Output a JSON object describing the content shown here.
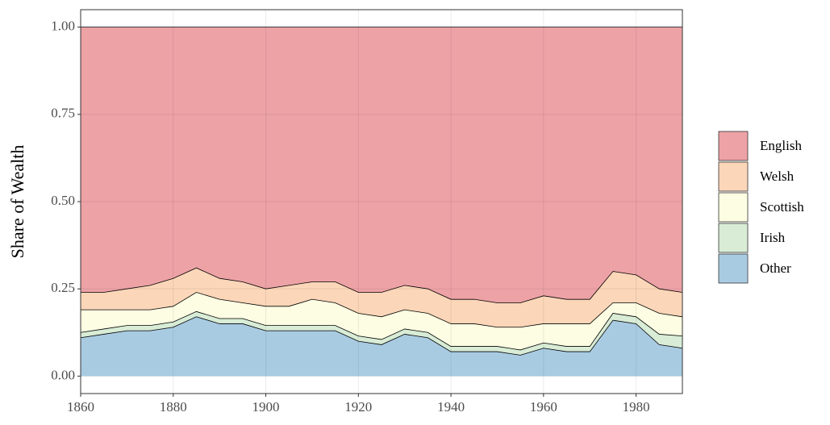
{
  "chart_data": {
    "type": "stacked_area",
    "y_label": "Share of Wealth",
    "x": [
      1860,
      1865,
      1870,
      1875,
      1880,
      1885,
      1890,
      1895,
      1900,
      1905,
      1910,
      1915,
      1920,
      1925,
      1930,
      1935,
      1940,
      1945,
      1950,
      1955,
      1960,
      1965,
      1970,
      1975,
      1980,
      1985,
      1990
    ],
    "xlim": [
      1860,
      1990
    ],
    "xticks": [
      1860,
      1880,
      1900,
      1920,
      1940,
      1960,
      1980
    ],
    "ylim": [
      -0.05,
      1.05
    ],
    "yticks": [
      {
        "value": 0,
        "label": "0.00"
      },
      {
        "value": 0.25,
        "label": "0.25"
      },
      {
        "value": 0.5,
        "label": "0.50"
      },
      {
        "value": 0.75,
        "label": "0.75"
      },
      {
        "value": 1,
        "label": "1.00"
      }
    ],
    "grid": true,
    "series": [
      {
        "name": "Other",
        "color": "#a9cbe2",
        "values": [
          0.11,
          0.12,
          0.13,
          0.13,
          0.14,
          0.17,
          0.15,
          0.15,
          0.13,
          0.13,
          0.13,
          0.13,
          0.1,
          0.09,
          0.12,
          0.11,
          0.07,
          0.07,
          0.07,
          0.06,
          0.08,
          0.07,
          0.07,
          0.16,
          0.15,
          0.09,
          0.08
        ]
      },
      {
        "name": "Irish",
        "color": "#d8ecd6",
        "values": [
          0.015,
          0.015,
          0.015,
          0.015,
          0.015,
          0.015,
          0.015,
          0.015,
          0.015,
          0.015,
          0.015,
          0.015,
          0.015,
          0.015,
          0.015,
          0.015,
          0.015,
          0.015,
          0.015,
          0.015,
          0.015,
          0.015,
          0.015,
          0.02,
          0.02,
          0.03,
          0.035
        ]
      },
      {
        "name": "Scottish",
        "color": "#fcfde2",
        "values": [
          0.065,
          0.055,
          0.045,
          0.045,
          0.045,
          0.055,
          0.055,
          0.045,
          0.055,
          0.055,
          0.075,
          0.065,
          0.065,
          0.065,
          0.055,
          0.055,
          0.065,
          0.065,
          0.055,
          0.065,
          0.055,
          0.065,
          0.065,
          0.03,
          0.04,
          0.06,
          0.055
        ]
      },
      {
        "name": "Welsh",
        "color": "#fcd6b8",
        "values": [
          0.05,
          0.05,
          0.06,
          0.07,
          0.08,
          0.07,
          0.06,
          0.06,
          0.05,
          0.06,
          0.05,
          0.06,
          0.06,
          0.07,
          0.07,
          0.07,
          0.07,
          0.07,
          0.07,
          0.07,
          0.08,
          0.07,
          0.07,
          0.09,
          0.08,
          0.07,
          0.07
        ]
      },
      {
        "name": "English",
        "color": "#eda2a6",
        "values": [
          0.76,
          0.76,
          0.75,
          0.74,
          0.72,
          0.69,
          0.72,
          0.73,
          0.75,
          0.74,
          0.73,
          0.73,
          0.76,
          0.76,
          0.74,
          0.75,
          0.78,
          0.78,
          0.79,
          0.79,
          0.77,
          0.78,
          0.78,
          0.7,
          0.71,
          0.75,
          0.76
        ]
      }
    ]
  }
}
